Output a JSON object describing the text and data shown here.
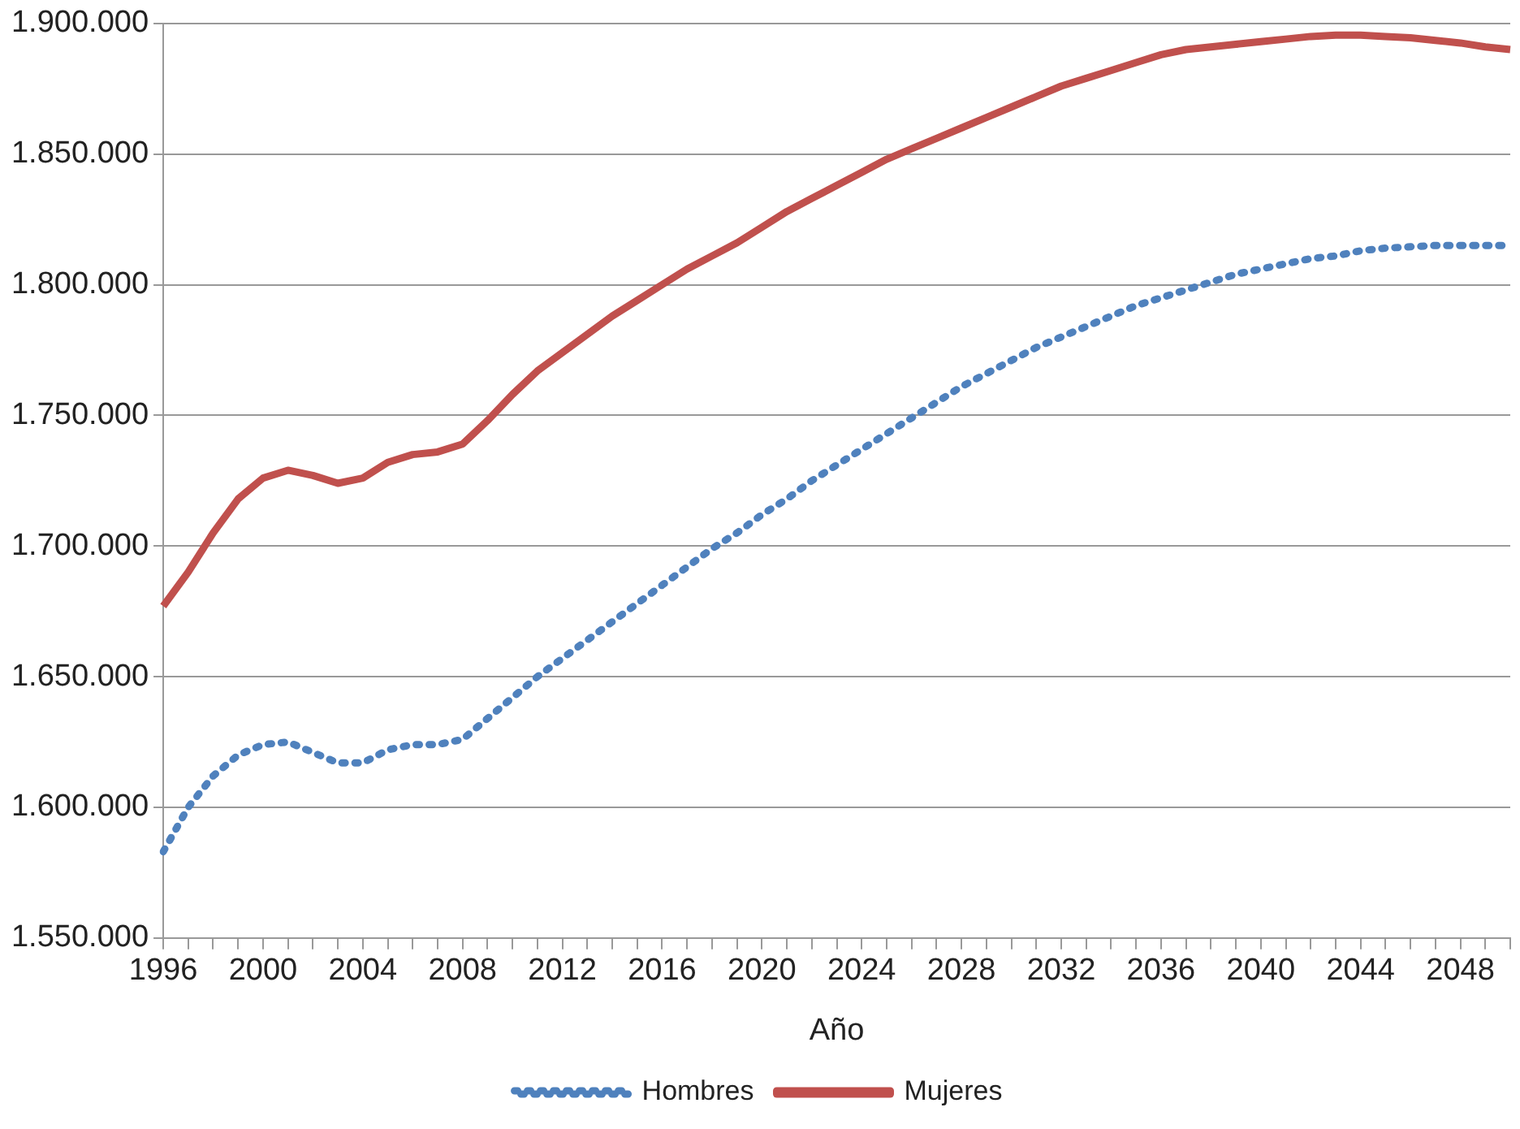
{
  "chart_data": {
    "type": "line",
    "xlabel": "Año",
    "categories": [
      "1996",
      null,
      null,
      null,
      "2000",
      null,
      null,
      null,
      "2004",
      null,
      null,
      null,
      "2008",
      null,
      null,
      null,
      "2012",
      null,
      null,
      null,
      "2016",
      null,
      null,
      null,
      "2020",
      null,
      null,
      null,
      "2024",
      null,
      null,
      null,
      "2028",
      null,
      null,
      null,
      "2032",
      null,
      null,
      null,
      "2036",
      null,
      null,
      null,
      "2040",
      null,
      null,
      null,
      "2044",
      null,
      null,
      null,
      "2048",
      null,
      null
    ],
    "series": [
      {
        "name": "Hombres",
        "color": "#4f81bd",
        "line_style": "dotted",
        "values": [
          1583000,
          1600000,
          1612000,
          1620000,
          1624000,
          1625000,
          1621000,
          1617000,
          1617000,
          1622000,
          1624000,
          1624000,
          1626000,
          1634000,
          1642000,
          1650000,
          1657000,
          1664000,
          1671000,
          1678000,
          1685000,
          1692000,
          1699000,
          1705000,
          1712000,
          1718000,
          1725000,
          1731000,
          1737000,
          1743000,
          1749000,
          1755000,
          1761000,
          1766000,
          1771000,
          1776000,
          1780000,
          1784000,
          1788000,
          1792000,
          1795000,
          1798000,
          1801000,
          1804000,
          1806000,
          1808000,
          1810000,
          1811000,
          1813000,
          1814000,
          1814500,
          1815000,
          1815000,
          1815000,
          1815000
        ]
      },
      {
        "name": "Mujeres",
        "color": "#c0504d",
        "line_style": "solid",
        "values": [
          1677000,
          1690000,
          1705000,
          1718000,
          1726000,
          1729000,
          1727000,
          1724000,
          1726000,
          1732000,
          1735000,
          1736000,
          1739000,
          1748000,
          1758000,
          1767000,
          1774000,
          1781000,
          1788000,
          1794000,
          1800000,
          1806000,
          1811000,
          1816000,
          1822000,
          1828000,
          1833000,
          1838000,
          1843000,
          1848000,
          1852000,
          1856000,
          1860000,
          1864000,
          1868000,
          1872000,
          1876000,
          1879000,
          1882000,
          1885000,
          1888000,
          1890000,
          1891000,
          1892000,
          1893000,
          1894000,
          1895000,
          1895500,
          1895500,
          1895000,
          1894500,
          1893500,
          1892500,
          1891000,
          1890000
        ]
      }
    ],
    "ylim": [
      1550000,
      1900000
    ],
    "yticks": [
      {
        "value": 1550000,
        "label": "1.550.000"
      },
      {
        "value": 1600000,
        "label": "1.600.000"
      },
      {
        "value": 1650000,
        "label": "1.650.000"
      },
      {
        "value": 1700000,
        "label": "1.700.000"
      },
      {
        "value": 1750000,
        "label": "1.750.000"
      },
      {
        "value": 1800000,
        "label": "1.800.000"
      },
      {
        "value": 1850000,
        "label": "1.850.000"
      },
      {
        "value": 1900000,
        "label": "1.900.000"
      }
    ],
    "grid": "y",
    "legend": "bottom",
    "marker": "none"
  }
}
